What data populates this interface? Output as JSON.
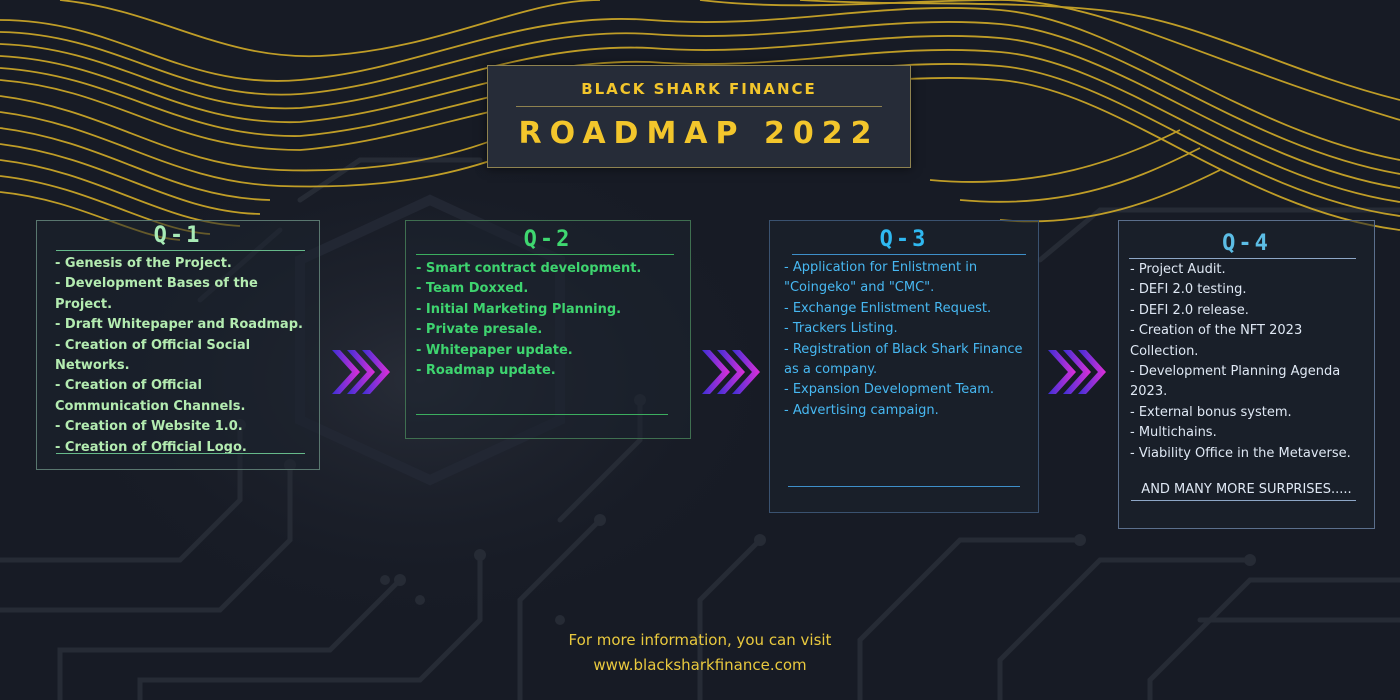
{
  "header": {
    "subtitle": "BLACK SHARK FINANCE",
    "title": "ROADMAP 2022"
  },
  "colors": {
    "gold": "#f3c62c",
    "q1": "#b4ecb1",
    "q2": "#3ed46f",
    "q3": "#47b8f2",
    "q4": "#dfe8f4",
    "chevron_start": "#3b2fd6",
    "chevron_end": "#e02fd8"
  },
  "quarters": [
    {
      "heading": "Q-1",
      "items": [
        "- Genesis of the Project.",
        "- Development Bases of the Project.",
        "- Draft Whitepaper and Roadmap.",
        "- Creation of Official Social Networks.",
        "- Creation of Official Communication Channels.",
        "- Creation of Website 1.0.",
        "- Creation of Official Logo."
      ]
    },
    {
      "heading": "Q-2",
      "items": [
        "- Smart contract development.",
        "- Team Doxxed.",
        "- Initial Marketing Planning.",
        "- Private presale.",
        "- Whitepaper update.",
        "- Roadmap update."
      ]
    },
    {
      "heading": "Q-3",
      "items": [
        "- Application for Enlistment in \"Coingeko\" and \"CMC\".",
        "- Exchange Enlistment Request.",
        "- Trackers Listing.",
        "- Registration of Black Shark Finance as a company.",
        "- Expansion Development Team.",
        "- Advertising campaign."
      ]
    },
    {
      "heading": "Q-4",
      "items": [
        "- Project Audit.",
        "- DEFI 2.0 testing.",
        "- DEFI 2.0 release.",
        "- Creation of the NFT 2023 Collection.",
        "- Development Planning Agenda 2023.",
        "- External bonus system.",
        "- Multichains.",
        "- Viability Office in the Metaverse."
      ],
      "extra": "AND MANY MORE SURPRISES....."
    }
  ],
  "footer": {
    "line1": "For more information, you can visit",
    "line2": "www.blacksharkfinance.com"
  },
  "icons": [
    "triple-chevron-right-icon"
  ]
}
